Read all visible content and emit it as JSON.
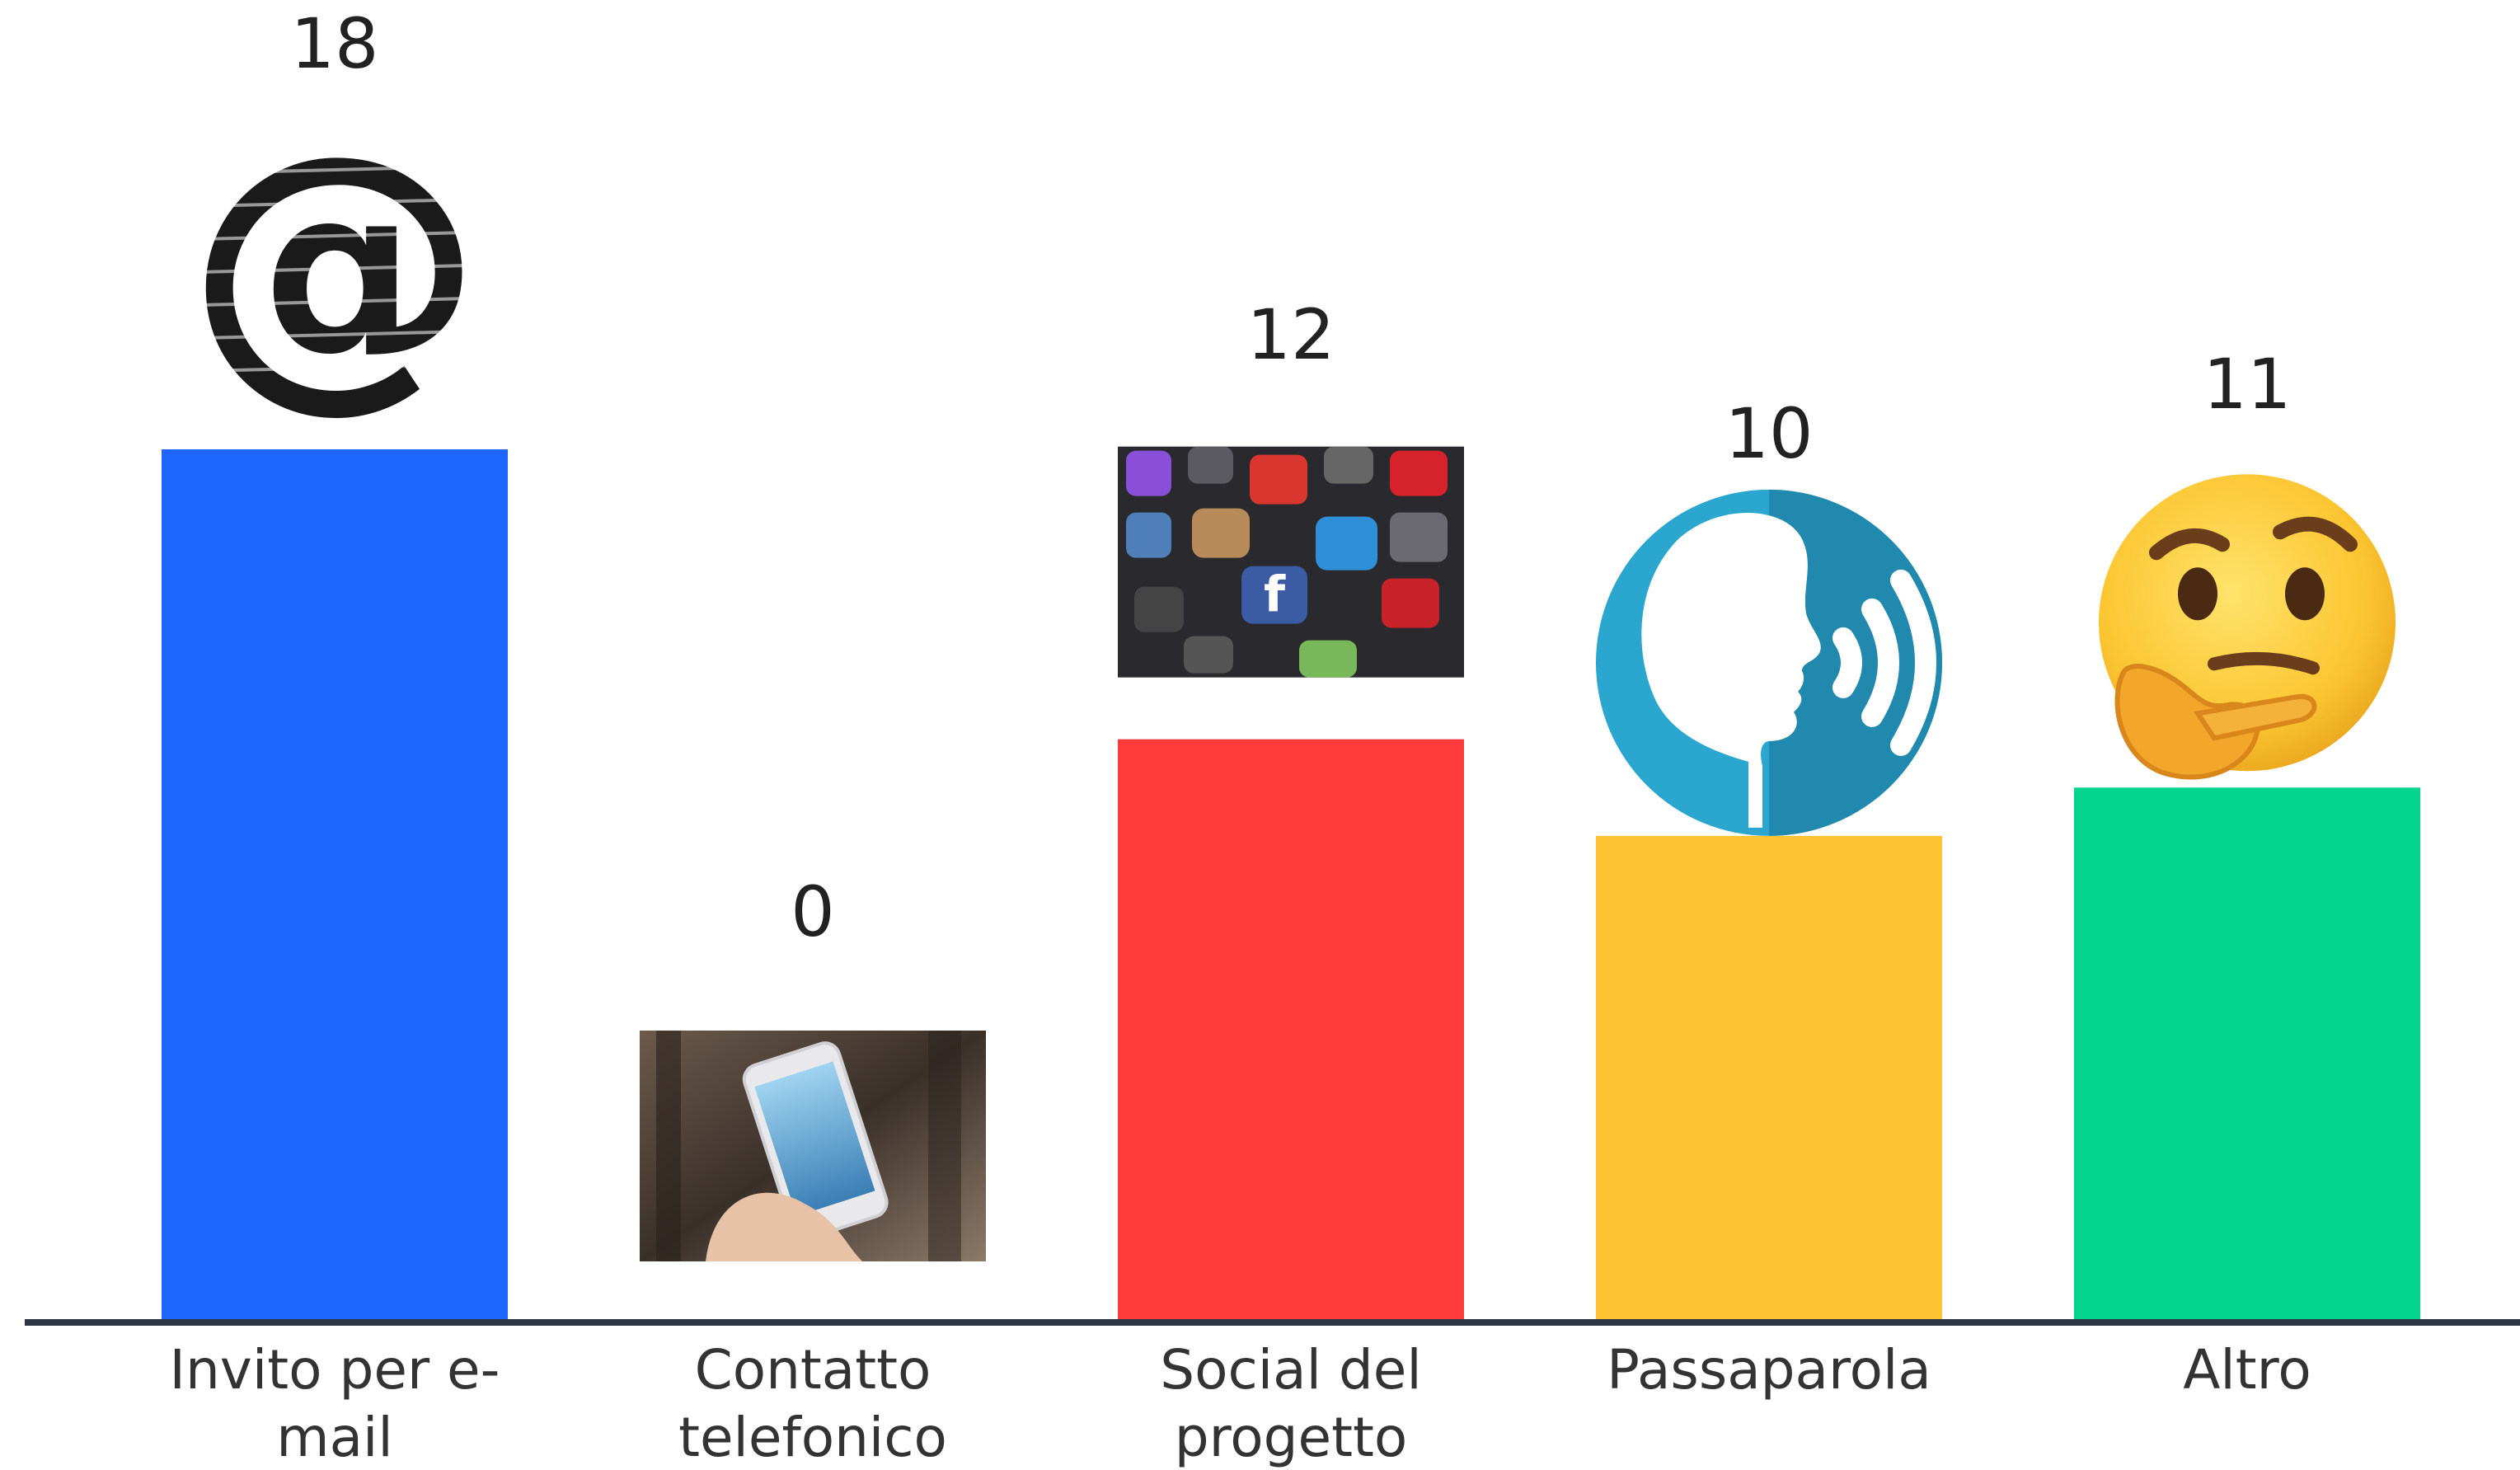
{
  "chart_data": {
    "type": "bar",
    "categories": [
      [
        "Invito per e-",
        "mail"
      ],
      [
        "Contatto",
        "telefonico"
      ],
      [
        "Social del",
        "progetto"
      ],
      [
        "Passaparola"
      ],
      [
        "Altro"
      ]
    ],
    "values": [
      18,
      0,
      12,
      10,
      11
    ],
    "colors": [
      "#1e66ff",
      "#cccccc",
      "#ff3b3b",
      "#ffc232",
      "#03d58e"
    ],
    "icons": [
      "at-sign-icon",
      "smartphone-photo-icon",
      "social-apps-photo-icon",
      "speaking-head-icon",
      "thinking-face-icon"
    ],
    "title": "",
    "xlabel": "",
    "ylabel": "",
    "ylim": [
      0,
      18
    ],
    "grid": false,
    "legend": "none"
  }
}
